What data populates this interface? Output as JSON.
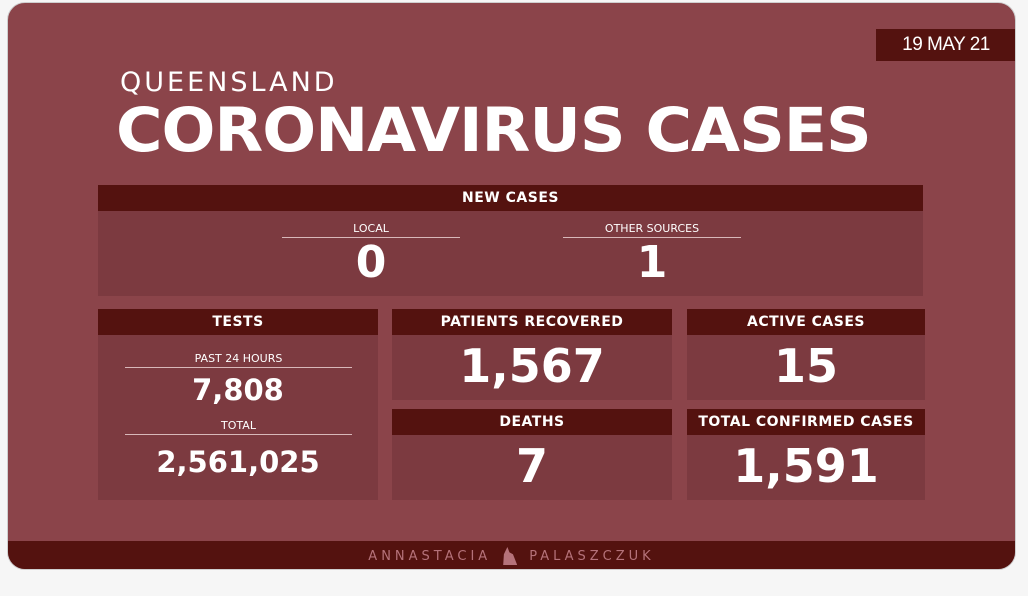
{
  "date": "19 MAY 21",
  "subtitle": "QUEENSLAND",
  "title": "CORONAVIRUS CASES",
  "new_cases": {
    "header": "NEW CASES",
    "local_label": "LOCAL",
    "local_value": "0",
    "other_label": "OTHER SOURCES",
    "other_value": "1"
  },
  "tests": {
    "header": "TESTS",
    "past_label": "PAST 24 HOURS",
    "past_value": "7,808",
    "total_label": "TOTAL",
    "total_value": "2,561,025"
  },
  "recovered": {
    "header": "PATIENTS RECOVERED",
    "value": "1,567"
  },
  "active": {
    "header": "ACTIVE CASES",
    "value": "15"
  },
  "deaths": {
    "header": "DEATHS",
    "value": "7"
  },
  "confirmed": {
    "header": "TOTAL CONFIRMED CASES",
    "value": "1,591"
  },
  "footer": {
    "first": "ANNASTACIA",
    "last": "PALASZCZUK"
  },
  "colors": {
    "background": "#8b444a",
    "header": "#54120f",
    "panel": "#7c3a40"
  }
}
